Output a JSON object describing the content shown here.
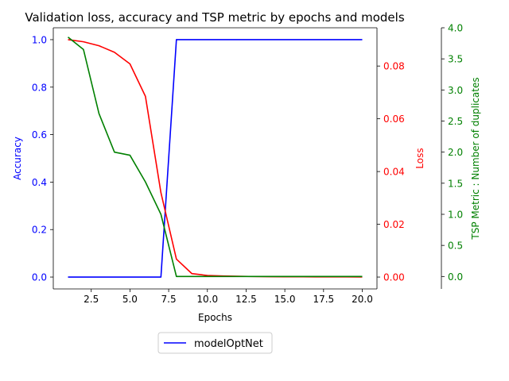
{
  "chart_data": {
    "type": "line",
    "title": "Validation loss, accuracy and TSP metric by epochs and models",
    "xlabel": "Epochs",
    "xlim": [
      0.05,
      20.95
    ],
    "x_ticks": [
      2.5,
      5.0,
      7.5,
      10.0,
      12.5,
      15.0,
      17.5,
      20.0
    ],
    "x_tick_labels": [
      "2.5",
      "5.0",
      "7.5",
      "10.0",
      "12.5",
      "15.0",
      "17.5",
      "20.0"
    ],
    "x": [
      1,
      2,
      3,
      4,
      5,
      6,
      7,
      8,
      9,
      10,
      11,
      12,
      13,
      14,
      15,
      16,
      17,
      18,
      19,
      20
    ],
    "axes": [
      {
        "id": "accuracy",
        "side": "left",
        "label": "Accuracy",
        "color": "#0000ff",
        "ylim": [
          -0.05,
          1.05
        ],
        "ticks": [
          0.0,
          0.2,
          0.4,
          0.6,
          0.8,
          1.0
        ],
        "tick_labels": [
          "0.0",
          "0.2",
          "0.4",
          "0.6",
          "0.8",
          "1.0"
        ]
      },
      {
        "id": "loss",
        "side": "right",
        "label": "Loss",
        "color": "#ff0000",
        "ylim": [
          -0.0045,
          0.0945
        ],
        "ticks": [
          0.0,
          0.02,
          0.04,
          0.06,
          0.08
        ],
        "tick_labels": [
          "0.00",
          "0.02",
          "0.04",
          "0.06",
          "0.08"
        ]
      },
      {
        "id": "tsp",
        "side": "right-offset",
        "label": "TSP Metric : Number of duplicates",
        "color": "#008000",
        "ylim": [
          -0.2,
          4.0
        ],
        "ticks": [
          0.0,
          0.5,
          1.0,
          1.5,
          2.0,
          2.5,
          3.0,
          3.5,
          4.0
        ],
        "tick_labels": [
          "0.0",
          "0.5",
          "1.0",
          "1.5",
          "2.0",
          "2.5",
          "3.0",
          "3.5",
          "4.0"
        ]
      }
    ],
    "series": [
      {
        "name": "modelOptNet",
        "axis": "accuracy",
        "color": "#0000ff",
        "values": [
          0,
          0,
          0,
          0,
          0,
          0,
          0,
          1,
          1,
          1,
          1,
          1,
          1,
          1,
          1,
          1,
          1,
          1,
          1,
          1
        ]
      },
      {
        "axis": "loss",
        "color": "#ff0000",
        "values": [
          0.09,
          0.0892,
          0.0877,
          0.0852,
          0.0808,
          0.0685,
          0.032,
          0.0068,
          0.0013,
          0.0006,
          0.0004,
          0.0003,
          0.0002,
          0.00015,
          0.0001,
          0.0001,
          8e-05,
          6e-05,
          5e-05,
          4e-05
        ]
      },
      {
        "axis": "tsp",
        "color": "#008000",
        "values": [
          3.85,
          3.65,
          2.62,
          2.0,
          1.95,
          1.52,
          1.0,
          0.0,
          0.0,
          0.0,
          0.0,
          0.0,
          0.0,
          0.0,
          0.0,
          0.0,
          0.0,
          0.0,
          0.0,
          0.0
        ]
      }
    ],
    "legend": {
      "placement": "below",
      "entries": [
        {
          "label": "modelOptNet",
          "color": "#0000ff"
        }
      ]
    },
    "grid": false
  }
}
